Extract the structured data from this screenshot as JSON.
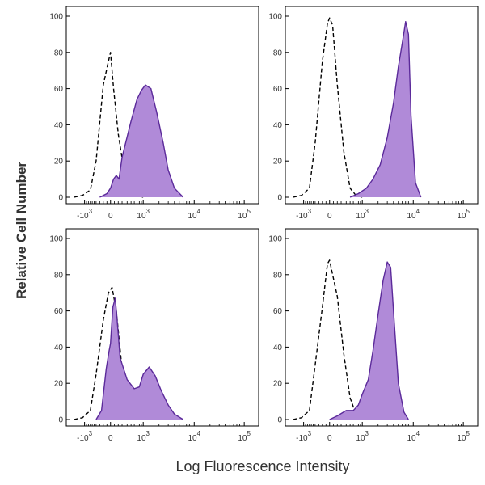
{
  "figure": {
    "ylabel": "Relative Cell Number",
    "xlabel": "Log Fluorescence Intensity"
  },
  "colors": {
    "filled_fill": "#b08ad8",
    "filled_stroke": "#5b2a9a",
    "control_stroke": "#000000",
    "axis": "#000000"
  },
  "chart_data": [
    {
      "type": "area",
      "panel": "top-left",
      "xscale": "biexponential",
      "ylim": [
        0,
        100
      ],
      "yticks": [
        "0",
        "20",
        "40",
        "60",
        "80",
        "100"
      ],
      "xticks": [
        {
          "base": "-10",
          "exp": "3",
          "at": -1000
        },
        {
          "base": "0",
          "exp": "",
          "at": 0
        },
        {
          "base": "10",
          "exp": "3",
          "at": 1000
        },
        {
          "base": "10",
          "exp": "4",
          "at": 10000
        },
        {
          "base": "10",
          "exp": "5",
          "at": 100000
        }
      ],
      "series": [
        {
          "style": "dashed",
          "x": [
            -2000,
            -1200,
            -700,
            -400,
            -200,
            -60,
            0,
            80,
            200,
            350,
            500,
            700,
            1000
          ],
          "y": [
            0,
            1,
            4,
            20,
            62,
            75,
            80,
            60,
            35,
            12,
            4,
            1,
            0
          ]
        },
        {
          "style": "filled",
          "x": [
            -300,
            -100,
            0,
            80,
            150,
            220,
            300,
            500,
            700,
            900,
            1100,
            1400,
            1800,
            2400,
            3000,
            4000,
            6000
          ],
          "y": [
            0,
            2,
            5,
            10,
            12,
            10,
            22,
            42,
            54,
            59,
            62,
            60,
            47,
            30,
            15,
            5,
            0
          ]
        }
      ]
    },
    {
      "type": "area",
      "panel": "top-right",
      "xscale": "biexponential",
      "ylim": [
        0,
        100
      ],
      "yticks": [
        "0",
        "20",
        "40",
        "60",
        "80",
        "100"
      ],
      "xticks": [
        {
          "base": "-10",
          "exp": "3",
          "at": -1000
        },
        {
          "base": "0",
          "exp": "",
          "at": 0
        },
        {
          "base": "10",
          "exp": "3",
          "at": 1000
        },
        {
          "base": "10",
          "exp": "4",
          "at": 10000
        },
        {
          "base": "10",
          "exp": "5",
          "at": 100000
        }
      ],
      "series": [
        {
          "style": "dashed",
          "x": [
            -2000,
            -1200,
            -700,
            -400,
            -200,
            -60,
            0,
            80,
            200,
            350,
            500,
            700,
            1000
          ],
          "y": [
            0,
            1,
            5,
            30,
            75,
            96,
            99,
            95,
            62,
            25,
            5,
            1,
            0
          ]
        },
        {
          "style": "filled",
          "x": [
            500,
            800,
            1200,
            1600,
            2200,
            3000,
            4000,
            5000,
            6000,
            7000,
            8000,
            9000,
            11000,
            14000
          ],
          "y": [
            0,
            2,
            5,
            10,
            18,
            33,
            52,
            72,
            85,
            97,
            90,
            45,
            8,
            0
          ]
        }
      ]
    },
    {
      "type": "area",
      "panel": "bottom-left",
      "xscale": "biexponential",
      "ylim": [
        0,
        100
      ],
      "yticks": [
        "0",
        "20",
        "40",
        "60",
        "80",
        "100"
      ],
      "xticks": [
        {
          "base": "-10",
          "exp": "3",
          "at": -1000
        },
        {
          "base": "0",
          "exp": "",
          "at": 0
        },
        {
          "base": "10",
          "exp": "3",
          "at": 1000
        },
        {
          "base": "10",
          "exp": "4",
          "at": 10000
        },
        {
          "base": "10",
          "exp": "5",
          "at": 100000
        }
      ],
      "series": [
        {
          "style": "dashed",
          "x": [
            -2000,
            -1200,
            -700,
            -400,
            -200,
            -60,
            40,
            150,
            300,
            450,
            600,
            800,
            1100
          ],
          "y": [
            0,
            1,
            5,
            25,
            55,
            70,
            73,
            60,
            28,
            10,
            4,
            1,
            0
          ]
        },
        {
          "style": "filled",
          "x": [
            -400,
            -250,
            -120,
            -40,
            0,
            60,
            120,
            160,
            250,
            400,
            600,
            800,
            1000,
            1300,
            1700,
            2200,
            3000,
            4000,
            6000
          ],
          "y": [
            0,
            5,
            28,
            38,
            42,
            62,
            67,
            58,
            34,
            22,
            17,
            18,
            25,
            29,
            24,
            16,
            8,
            3,
            0
          ]
        }
      ]
    },
    {
      "type": "area",
      "panel": "bottom-right",
      "xscale": "biexponential",
      "ylim": [
        0,
        100
      ],
      "yticks": [
        "0",
        "20",
        "40",
        "60",
        "80",
        "100"
      ],
      "xticks": [
        {
          "base": "-10",
          "exp": "3",
          "at": -1000
        },
        {
          "base": "0",
          "exp": "",
          "at": 0
        },
        {
          "base": "10",
          "exp": "3",
          "at": 1000
        },
        {
          "base": "10",
          "exp": "4",
          "at": 10000
        },
        {
          "base": "10",
          "exp": "5",
          "at": 100000
        }
      ],
      "series": [
        {
          "style": "dashed",
          "x": [
            -2000,
            -1200,
            -700,
            -400,
            -200,
            -60,
            0,
            80,
            200,
            350,
            500,
            700,
            1000
          ],
          "y": [
            0,
            1,
            5,
            30,
            62,
            86,
            88,
            80,
            68,
            36,
            12,
            3,
            0
          ]
        },
        {
          "style": "filled",
          "x": [
            0,
            200,
            400,
            600,
            800,
            1000,
            1300,
            1600,
            2000,
            2500,
            3000,
            3500,
            4000,
            5000,
            6500,
            8000
          ],
          "y": [
            0,
            2,
            5,
            5,
            8,
            14,
            22,
            38,
            58,
            77,
            87,
            84,
            60,
            20,
            4,
            0
          ]
        }
      ]
    }
  ]
}
